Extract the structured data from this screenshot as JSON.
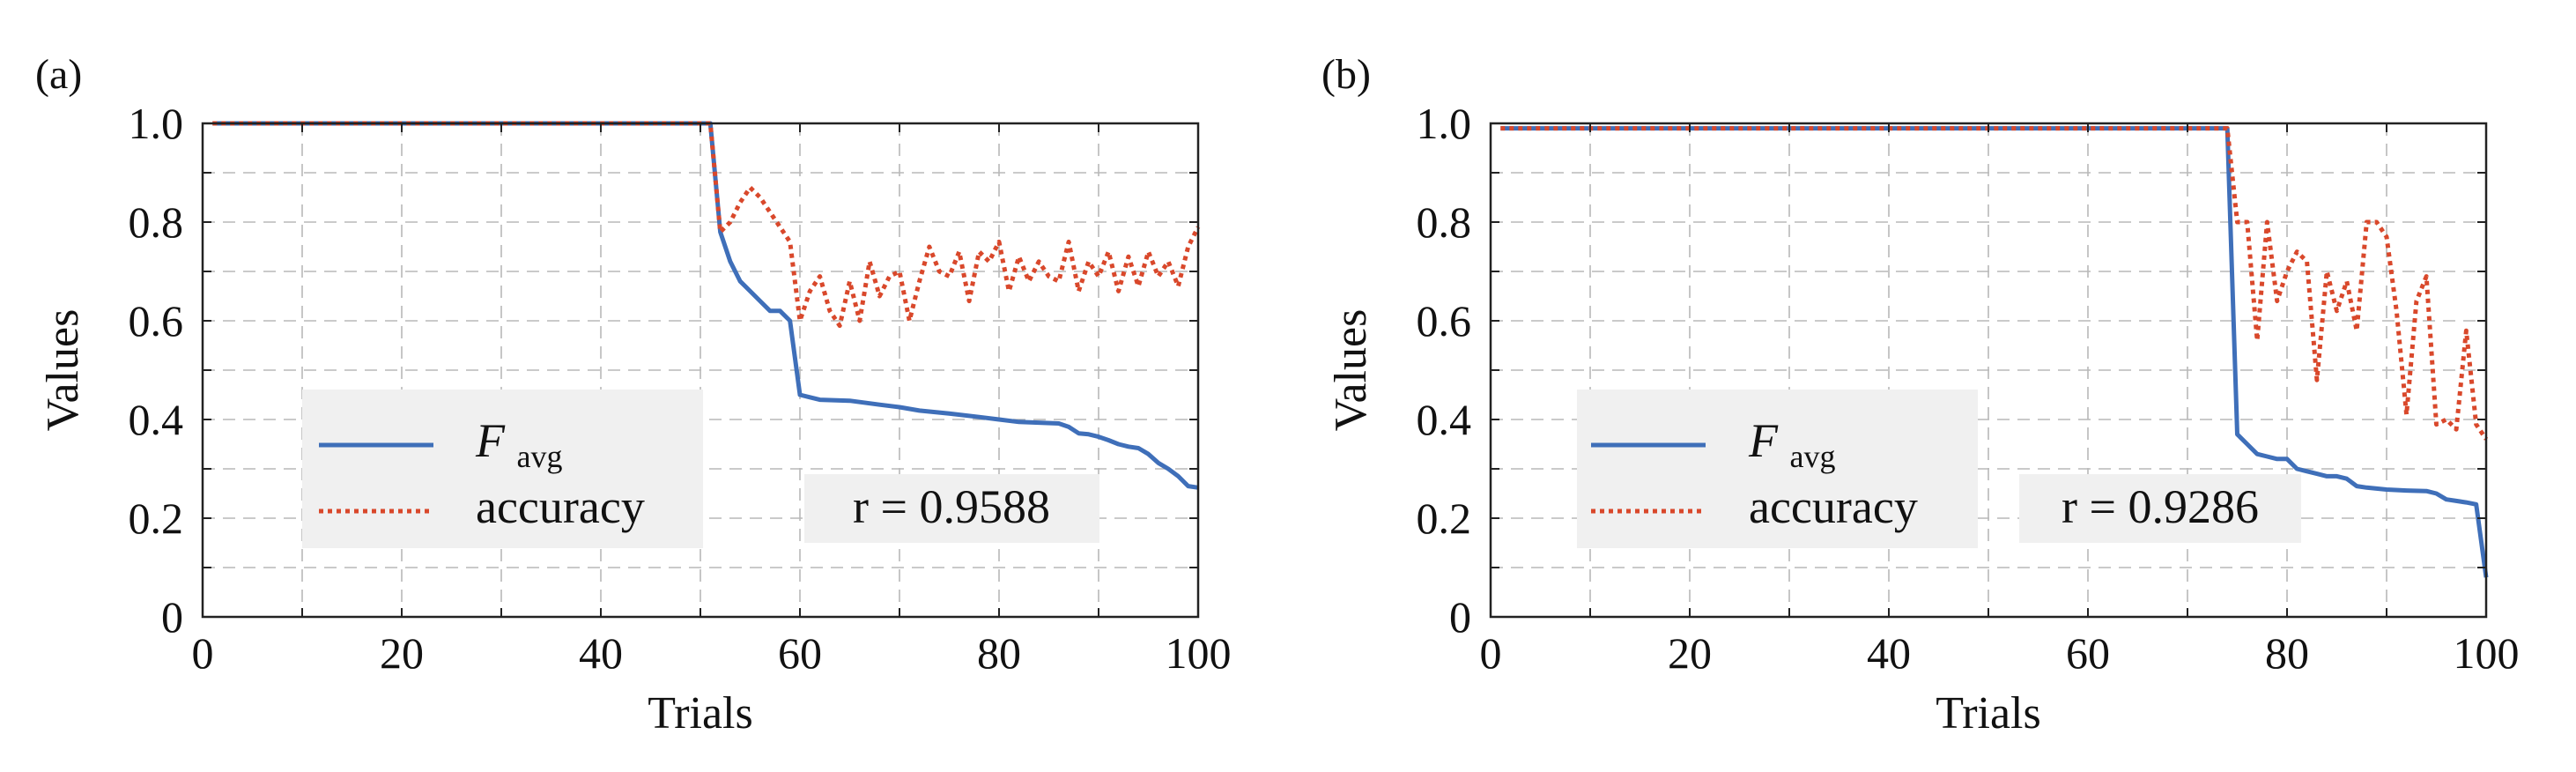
{
  "colors": {
    "favg": "#3f6fb9",
    "accuracy": "#d9482b",
    "grid": "#b8b8b8",
    "legend_bg": "#f0f0f0",
    "axis": "#222222"
  },
  "chart_data": [
    {
      "type": "line",
      "panel_label": "(a)",
      "xlabel": "Trials",
      "ylabel": "Values",
      "xlim": [
        0,
        100
      ],
      "ylim": [
        0,
        1.0
      ],
      "xticks": [
        0,
        20,
        40,
        60,
        80,
        100
      ],
      "xtick_labels": [
        "0",
        "20",
        "40",
        "60",
        "80",
        "100"
      ],
      "yticks": [
        0,
        0.2,
        0.4,
        0.6,
        0.8,
        1.0
      ],
      "ytick_labels": [
        "0",
        "0.2",
        "0.4",
        "0.6",
        "0.8",
        "1.0"
      ],
      "grid": true,
      "legend": {
        "position": "lower-left",
        "entries": [
          {
            "base": "F",
            "sub": "avg"
          },
          {
            "label": "accuracy"
          }
        ]
      },
      "annotation": "r = 0.9588",
      "series": [
        {
          "name": "Favg",
          "x": [
            1,
            51,
            52,
            53,
            54,
            55,
            56,
            57,
            58,
            59,
            60,
            61,
            62,
            65,
            68,
            70,
            72,
            75,
            78,
            80,
            82,
            86,
            87,
            88,
            89,
            90,
            91,
            92,
            93,
            94,
            95,
            96,
            97,
            98,
            99,
            100
          ],
          "values": [
            1.0,
            1.0,
            0.78,
            0.72,
            0.68,
            0.66,
            0.64,
            0.62,
            0.62,
            0.6,
            0.45,
            0.445,
            0.44,
            0.438,
            0.43,
            0.425,
            0.418,
            0.412,
            0.405,
            0.4,
            0.395,
            0.392,
            0.385,
            0.372,
            0.37,
            0.365,
            0.358,
            0.35,
            0.345,
            0.342,
            0.33,
            0.312,
            0.3,
            0.285,
            0.265,
            0.262
          ]
        },
        {
          "name": "accuracy",
          "x": [
            1,
            51,
            52,
            53,
            54,
            55,
            56,
            57,
            58,
            59,
            60,
            61,
            62,
            63,
            64,
            65,
            66,
            67,
            68,
            69,
            70,
            71,
            72,
            73,
            74,
            75,
            76,
            77,
            78,
            79,
            80,
            81,
            82,
            83,
            84,
            85,
            86,
            87,
            88,
            89,
            90,
            91,
            92,
            93,
            94,
            95,
            96,
            97,
            98,
            99,
            100
          ],
          "values": [
            1.0,
            1.0,
            0.78,
            0.8,
            0.84,
            0.87,
            0.85,
            0.82,
            0.79,
            0.76,
            0.6,
            0.66,
            0.69,
            0.62,
            0.59,
            0.68,
            0.6,
            0.72,
            0.65,
            0.69,
            0.7,
            0.6,
            0.68,
            0.75,
            0.7,
            0.69,
            0.74,
            0.64,
            0.74,
            0.72,
            0.76,
            0.66,
            0.73,
            0.68,
            0.72,
            0.69,
            0.68,
            0.76,
            0.66,
            0.72,
            0.69,
            0.74,
            0.66,
            0.73,
            0.67,
            0.74,
            0.69,
            0.72,
            0.67,
            0.75,
            0.79
          ]
        }
      ]
    },
    {
      "type": "line",
      "panel_label": "(b)",
      "xlabel": "Trials",
      "ylabel": "Values",
      "xlim": [
        0,
        100
      ],
      "ylim": [
        0,
        1.0
      ],
      "xticks": [
        0,
        20,
        40,
        60,
        80,
        100
      ],
      "xtick_labels": [
        "0",
        "20",
        "40",
        "60",
        "80",
        "100"
      ],
      "yticks": [
        0,
        0.2,
        0.4,
        0.6,
        0.8,
        1.0
      ],
      "ytick_labels": [
        "0",
        "0.2",
        "0.4",
        "0.6",
        "0.8",
        "1.0"
      ],
      "grid": true,
      "legend": {
        "position": "lower-left",
        "entries": [
          {
            "base": "F",
            "sub": "avg"
          },
          {
            "label": "accuracy"
          }
        ]
      },
      "annotation": "r = 0.9286",
      "series": [
        {
          "name": "Favg",
          "x": [
            1,
            74,
            75,
            76,
            77,
            78,
            79,
            80,
            81,
            82,
            83,
            84,
            85,
            86,
            87,
            88,
            89,
            90,
            92,
            94,
            95,
            96,
            97,
            98,
            99,
            100
          ],
          "values": [
            0.99,
            0.99,
            0.37,
            0.35,
            0.33,
            0.325,
            0.32,
            0.32,
            0.3,
            0.295,
            0.29,
            0.285,
            0.285,
            0.28,
            0.265,
            0.262,
            0.26,
            0.258,
            0.256,
            0.255,
            0.25,
            0.238,
            0.235,
            0.232,
            0.228,
            0.08
          ]
        },
        {
          "name": "accuracy",
          "x": [
            1,
            74,
            75,
            76,
            77,
            78,
            79,
            80,
            81,
            82,
            83,
            84,
            85,
            86,
            87,
            88,
            89,
            90,
            91,
            92,
            93,
            94,
            95,
            96,
            97,
            98,
            99,
            100
          ],
          "values": [
            0.99,
            0.99,
            0.8,
            0.8,
            0.56,
            0.8,
            0.64,
            0.7,
            0.74,
            0.72,
            0.48,
            0.7,
            0.62,
            0.68,
            0.58,
            0.8,
            0.8,
            0.77,
            0.62,
            0.41,
            0.64,
            0.69,
            0.39,
            0.4,
            0.38,
            0.58,
            0.39,
            0.36
          ]
        }
      ]
    }
  ]
}
